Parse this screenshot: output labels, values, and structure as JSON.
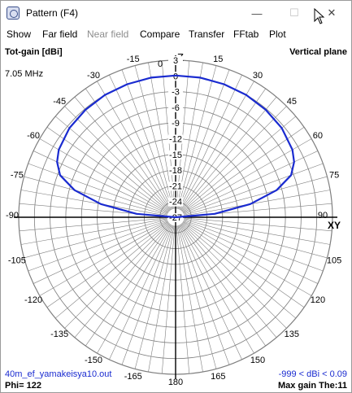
{
  "window": {
    "title": "Pattern   (F4)",
    "minimize_symbol": "—",
    "maximize_symbol": "☐",
    "close_symbol": "✕"
  },
  "menu": [
    "Show",
    "Far field",
    "Near field",
    "Compare",
    "Transfer",
    "FFtab",
    "Plot"
  ],
  "menu_disabled": [
    "Near field"
  ],
  "plot": {
    "title_left": "Tot-gain [dBi]",
    "title_right": "Vertical plane",
    "frequency": "7.05 MHz",
    "axis_top": "Z",
    "axis_right": "XY",
    "angle_labels": [
      "0",
      "15",
      "30",
      "45",
      "60",
      "75",
      "90",
      "105",
      "120",
      "135",
      "150",
      "165",
      "180",
      "-165",
      "-150",
      "-135",
      "-120",
      "-105",
      "-90",
      "-75",
      "-60",
      "-45",
      "-30",
      "-15"
    ],
    "gain_labels": [
      "3",
      "0",
      "-3",
      "-6",
      "-9",
      "-12",
      "-15",
      "-18",
      "-21",
      "-24",
      "-27"
    ],
    "file_name": "40m_ef_yamakeisya10.out",
    "phi_text": "Phi= 122",
    "range_text": "-999 < dBi < 0.09",
    "max_gain_text": "Max gain The:11",
    "grid_color": "#7f7f7f",
    "trace_color": "#1a2bd0"
  },
  "chart_data": {
    "type": "polar",
    "title": "Tot-gain [dBi]",
    "subtitle": "Vertical plane",
    "series": [
      {
        "name": "Tot-gain",
        "theta_deg": [
          -90,
          -85,
          -80,
          -75,
          -70,
          -65,
          -60,
          -50,
          -40,
          -30,
          -20,
          -10,
          0,
          10,
          20,
          30,
          40,
          50,
          60,
          65,
          70,
          75,
          80,
          85,
          90
        ],
        "gain_dbi": [
          -27,
          -19.5,
          -12.5,
          -7,
          -3.5,
          -2,
          -1.2,
          -0.5,
          -0.2,
          0,
          0.05,
          0.09,
          0.08,
          0.09,
          0.05,
          0,
          -0.2,
          -0.5,
          -1.2,
          -2,
          -3.5,
          -7,
          -12.5,
          -19.5,
          -27
        ]
      }
    ],
    "r_range_dbi": [
      -27,
      3
    ],
    "theta_ticks_deg": [
      0,
      15,
      30,
      45,
      60,
      75,
      90,
      105,
      120,
      135,
      150,
      165,
      180,
      -165,
      -150,
      -135,
      -120,
      -105,
      -90,
      -75,
      -60,
      -45,
      -30,
      -15
    ],
    "max_gain_dbi": 0.09
  }
}
